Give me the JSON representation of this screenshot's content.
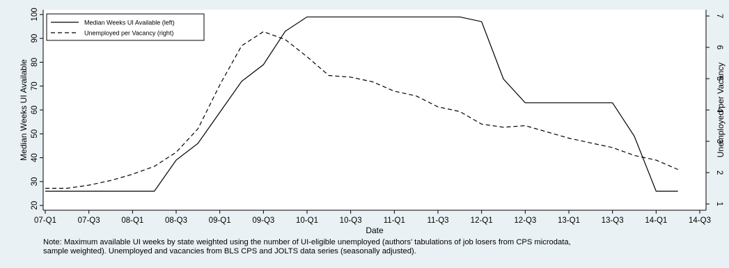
{
  "chart_data": {
    "type": "line",
    "xlabel": "Date",
    "ylabel_left": "Median Weeks UI Available",
    "ylabel_right": "Unemployed per Vacancy",
    "x_ticks": [
      "07-Q1",
      "07-Q3",
      "08-Q1",
      "08-Q3",
      "09-Q1",
      "09-Q3",
      "10-Q1",
      "10-Q3",
      "11-Q1",
      "11-Q3",
      "12-Q1",
      "12-Q3",
      "13-Q1",
      "13-Q3",
      "14-Q1",
      "14-Q3"
    ],
    "y_left_ticks": [
      20,
      30,
      40,
      50,
      60,
      70,
      80,
      90,
      100
    ],
    "y_right_ticks": [
      1,
      2,
      3,
      4,
      5,
      6,
      7
    ],
    "ylim_left": [
      18,
      102
    ],
    "ylim_right": [
      0.8,
      7.2
    ],
    "grid": false,
    "legend_position": "top-left",
    "series": [
      {
        "name": "Median Weeks UI Available (left)",
        "axis": "left",
        "style": "solid",
        "x": [
          "07-Q1",
          "07-Q2",
          "07-Q3",
          "07-Q4",
          "08-Q1",
          "08-Q2",
          "08-Q3",
          "08-Q4",
          "09-Q1",
          "09-Q2",
          "09-Q3",
          "09-Q4",
          "10-Q1",
          "10-Q2",
          "10-Q3",
          "10-Q4",
          "11-Q1",
          "11-Q2",
          "11-Q3",
          "11-Q4",
          "12-Q1",
          "12-Q2",
          "12-Q3",
          "12-Q4",
          "13-Q1",
          "13-Q2",
          "13-Q3",
          "13-Q4",
          "14-Q1",
          "14-Q2"
        ],
        "values": [
          26,
          26,
          26,
          26,
          26,
          26,
          39,
          46,
          59,
          72,
          79,
          93,
          99,
          99,
          99,
          99,
          99,
          99,
          99,
          99,
          97,
          73,
          63,
          63,
          63,
          63,
          63,
          49,
          26,
          26
        ]
      },
      {
        "name": "Unemployed per Vacancy (right)",
        "axis": "right",
        "style": "dashed",
        "x": [
          "07-Q1",
          "07-Q2",
          "07-Q3",
          "07-Q4",
          "08-Q1",
          "08-Q2",
          "08-Q3",
          "08-Q4",
          "09-Q1",
          "09-Q2",
          "09-Q3",
          "09-Q4",
          "10-Q1",
          "10-Q2",
          "10-Q3",
          "10-Q4",
          "11-Q1",
          "11-Q2",
          "11-Q3",
          "11-Q4",
          "12-Q1",
          "12-Q2",
          "12-Q3",
          "12-Q4",
          "13-Q1",
          "13-Q2",
          "13-Q3",
          "13-Q4",
          "14-Q1",
          "14-Q2"
        ],
        "values": [
          1.5,
          1.5,
          1.6,
          1.75,
          1.95,
          2.2,
          2.65,
          3.4,
          4.8,
          6.05,
          6.5,
          6.25,
          5.7,
          5.1,
          5.05,
          4.9,
          4.6,
          4.45,
          4.1,
          3.95,
          3.55,
          3.45,
          3.5,
          3.3,
          3.1,
          2.95,
          2.8,
          2.55,
          2.4,
          2.1
        ]
      }
    ]
  },
  "note": {
    "line1": "Note:  Maximum available UI weeks by state weighted using the number of UI-eligible unemployed (authors' tabulations of job losers from CPS microdata,",
    "line2": "sample weighted).  Unemployed and vacancies from BLS CPS and JOLTS data series (seasonally adjusted)."
  },
  "colors": {
    "background": "#eaf1f4",
    "plot_background": "#ffffff",
    "lines": "#000000"
  }
}
